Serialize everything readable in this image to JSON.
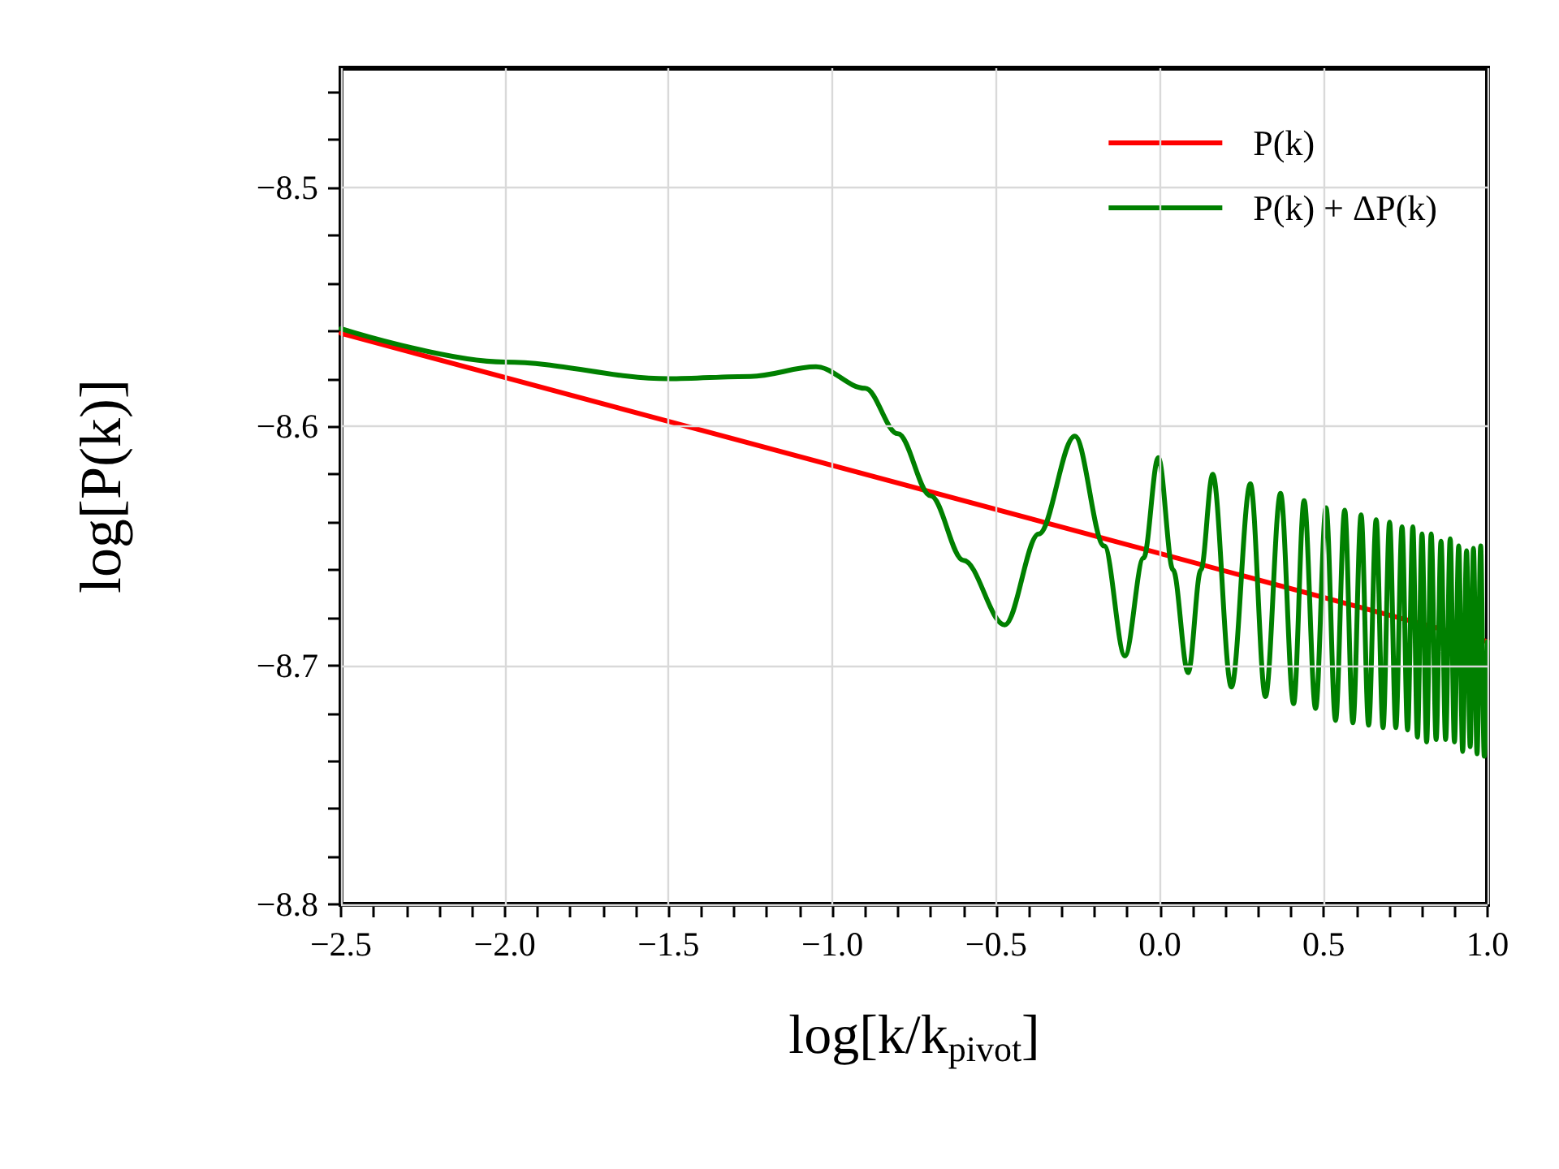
{
  "chart_data": {
    "type": "line",
    "xlabel": "log[k/k$_{pivot}$]",
    "ylabel": "log[P(k)]",
    "xlim": [
      -2.5,
      1.0
    ],
    "ylim": [
      -8.8,
      -8.45
    ],
    "xticks": [
      {
        "value": -2.5,
        "label": "−2.5"
      },
      {
        "value": -2.4,
        "label": null
      },
      {
        "value": -2.3,
        "label": null
      },
      {
        "value": -2.2,
        "label": null
      },
      {
        "value": -2.1,
        "label": null
      },
      {
        "value": -2.0,
        "label": "−2.0"
      },
      {
        "value": -1.9,
        "label": null
      },
      {
        "value": -1.8,
        "label": null
      },
      {
        "value": -1.7,
        "label": null
      },
      {
        "value": -1.6,
        "label": null
      },
      {
        "value": -1.5,
        "label": "−1.5"
      },
      {
        "value": -1.4,
        "label": null
      },
      {
        "value": -1.3,
        "label": null
      },
      {
        "value": -1.2,
        "label": null
      },
      {
        "value": -1.1,
        "label": null
      },
      {
        "value": -1.0,
        "label": "−1.0"
      },
      {
        "value": -0.9,
        "label": null
      },
      {
        "value": -0.8,
        "label": null
      },
      {
        "value": -0.7,
        "label": null
      },
      {
        "value": -0.6,
        "label": null
      },
      {
        "value": -0.5,
        "label": "−0.5"
      },
      {
        "value": -0.4,
        "label": null
      },
      {
        "value": -0.3,
        "label": null
      },
      {
        "value": -0.2,
        "label": null
      },
      {
        "value": -0.1,
        "label": null
      },
      {
        "value": 0,
        "label": "0.0"
      },
      {
        "value": 0.1,
        "label": null
      },
      {
        "value": 0.2,
        "label": null
      },
      {
        "value": 0.3,
        "label": null
      },
      {
        "value": 0.4,
        "label": null
      },
      {
        "value": 0.5,
        "label": "0.5"
      },
      {
        "value": 0.6,
        "label": null
      },
      {
        "value": 0.7,
        "label": null
      },
      {
        "value": 0.8,
        "label": null
      },
      {
        "value": 0.9,
        "label": null
      },
      {
        "value": 1.0,
        "label": "1.0"
      }
    ],
    "yticks": [
      {
        "value": -8.8,
        "label": "−8.8"
      },
      {
        "value": -8.78,
        "label": null
      },
      {
        "value": -8.76,
        "label": null
      },
      {
        "value": -8.74,
        "label": null
      },
      {
        "value": -8.72,
        "label": null
      },
      {
        "value": -8.7,
        "label": "−8.7"
      },
      {
        "value": -8.68,
        "label": null
      },
      {
        "value": -8.66,
        "label": null
      },
      {
        "value": -8.64,
        "label": null
      },
      {
        "value": -8.62,
        "label": null
      },
      {
        "value": -8.6,
        "label": "−8.6"
      },
      {
        "value": -8.58,
        "label": null
      },
      {
        "value": -8.56,
        "label": null
      },
      {
        "value": -8.54,
        "label": null
      },
      {
        "value": -8.52,
        "label": null
      },
      {
        "value": -8.5,
        "label": "−8.5"
      },
      {
        "value": -8.48,
        "label": null
      },
      {
        "value": -8.46,
        "label": null
      }
    ],
    "grid": true,
    "legend": "top right",
    "marker": "none",
    "line_style": "solid",
    "series": [
      {
        "name": "P(k)",
        "color": "#ff0000",
        "x": [
          -2.5,
          1.0
        ],
        "values": [
          -8.561,
          -8.69
        ]
      },
      {
        "name": "P(k) + ΔP(k)",
        "color": "#008000",
        "x": [
          -2.5,
          -2.0,
          -1.5,
          -1.25,
          -1.05,
          -0.9,
          -0.8,
          -0.7,
          -0.6,
          -0.474,
          -0.37,
          -0.26,
          -0.17,
          -0.107,
          -0.05,
          -0.005,
          0.04,
          0.086,
          0.125,
          0.161,
          0.218,
          0.276,
          0.322,
          0.368,
          0.408,
          0.44,
          0.475,
          0.507,
          0.536,
          0.564,
          0.589,
          0.614,
          0.637,
          0.66,
          0.681,
          0.701,
          0.72,
          0.739,
          0.756,
          0.772,
          0.786,
          0.8,
          0.814,
          0.828,
          0.843,
          0.858,
          0.872,
          0.886,
          0.899,
          0.912,
          0.924,
          0.936,
          0.947,
          0.957,
          0.968,
          0.979,
          0.99,
          1.0
        ],
        "values": [
          -8.559,
          -8.573,
          -8.58,
          -8.579,
          -8.575,
          -8.584,
          -8.603,
          -8.629,
          -8.656,
          -8.683,
          -8.645,
          -8.604,
          -8.65,
          -8.696,
          -8.655,
          -8.613,
          -8.66,
          -8.703,
          -8.66,
          -8.62,
          -8.709,
          -8.624,
          -8.713,
          -8.628,
          -8.716,
          -8.631,
          -8.718,
          -8.634,
          -8.723,
          -8.635,
          -8.724,
          -8.637,
          -8.725,
          -8.639,
          -8.726,
          -8.64,
          -8.726,
          -8.642,
          -8.727,
          -8.642,
          -8.73,
          -8.645,
          -8.732,
          -8.645,
          -8.731,
          -8.648,
          -8.731,
          -8.647,
          -8.732,
          -8.65,
          -8.736,
          -8.652,
          -8.734,
          -8.651,
          -8.737,
          -8.65,
          -8.738,
          -8.69
        ]
      }
    ]
  }
}
